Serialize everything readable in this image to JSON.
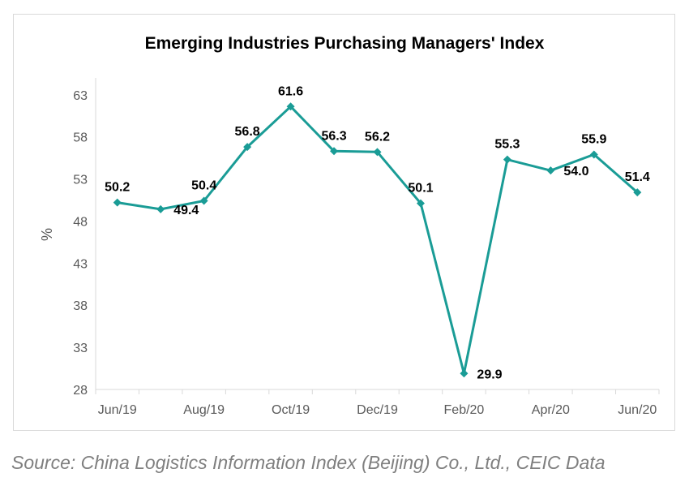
{
  "chart_data": {
    "type": "line",
    "title": "Emerging Industries Purchasing Managers' Index",
    "xlabel": "",
    "ylabel": "%",
    "x": [
      "Jun/19",
      "Jul/19",
      "Aug/19",
      "Sep/19",
      "Oct/19",
      "Nov/19",
      "Dec/19",
      "Jan/20",
      "Feb/20",
      "Mar/20",
      "Apr/20",
      "May/20",
      "Jun/20"
    ],
    "x_tick_labels": [
      "Jun/19",
      "Aug/19",
      "Oct/19",
      "Dec/19",
      "Feb/20",
      "Apr/20",
      "Jun/20"
    ],
    "y_ticks": [
      28,
      33,
      38,
      43,
      48,
      53,
      58,
      63
    ],
    "ylim": [
      28,
      65
    ],
    "grid": false,
    "series": [
      {
        "values": [
          50.2,
          49.4,
          50.4,
          56.8,
          61.6,
          56.3,
          56.2,
          50.1,
          29.9,
          55.3,
          54.0,
          55.9,
          51.4
        ],
        "data_labels": [
          "50.2",
          "49.4",
          "50.4",
          "56.8",
          "61.6",
          "56.3",
          "56.2",
          "50.1",
          "29.9",
          "55.3",
          "54.0",
          "55.9",
          "51.4"
        ],
        "color": "#1a9c96"
      }
    ]
  },
  "source": "Source: China Logistics Information Index (Beijing) Co., Ltd., CEIC Data"
}
